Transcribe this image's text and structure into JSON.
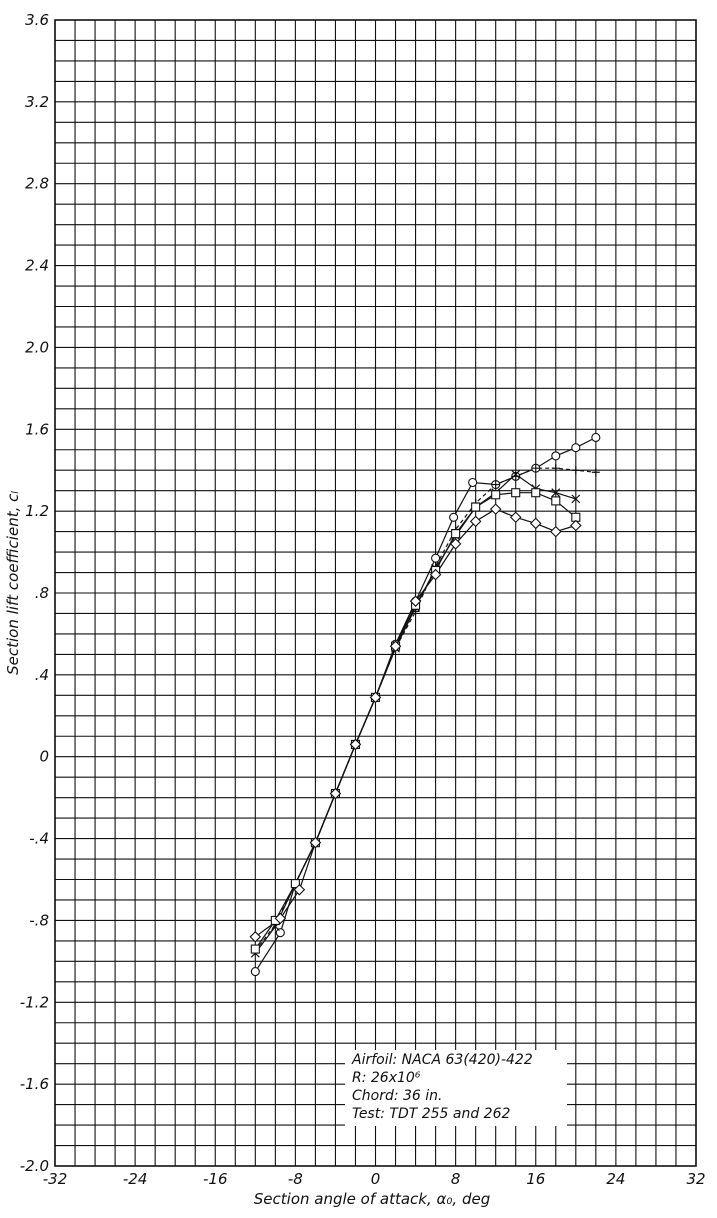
{
  "chart_data": {
    "type": "line",
    "xlabel": "Section angle of attack, α₀, deg",
    "ylabel": "Section lift coefficient, cₗ",
    "xlim": [
      -32,
      32
    ],
    "ylim": [
      -2.0,
      3.6
    ],
    "x_major_step": 8,
    "y_major_step": 0.4,
    "x_minor_step": 2,
    "y_minor_step": 0.1,
    "grid": true,
    "x_ticks": [
      {
        "value": -32,
        "label": "-32"
      },
      {
        "value": -24,
        "label": "-24"
      },
      {
        "value": -16,
        "label": "-16"
      },
      {
        "value": -8,
        "label": "-8"
      },
      {
        "value": 0,
        "label": "0"
      },
      {
        "value": 8,
        "label": "8"
      },
      {
        "value": 16,
        "label": "16"
      },
      {
        "value": 24,
        "label": "24"
      },
      {
        "value": 32,
        "label": "32"
      }
    ],
    "y_ticks": [
      {
        "value": 3.6,
        "label": "3.6"
      },
      {
        "value": 3.2,
        "label": "3.2"
      },
      {
        "value": 2.8,
        "label": "2.8"
      },
      {
        "value": 2.4,
        "label": "2.4"
      },
      {
        "value": 2.0,
        "label": "2.0"
      },
      {
        "value": 1.6,
        "label": "1.6"
      },
      {
        "value": 1.2,
        "label": "1.2"
      },
      {
        "value": 0.8,
        "label": ".8"
      },
      {
        "value": 0.4,
        "label": ".4"
      },
      {
        "value": 0,
        "label": "0"
      },
      {
        "value": -0.4,
        "label": "-.4"
      },
      {
        "value": -0.8,
        "label": "-.8"
      },
      {
        "value": -1.2,
        "label": "-1.2"
      },
      {
        "value": -1.6,
        "label": "-1.6"
      },
      {
        "value": -2.0,
        "label": "-2.0"
      }
    ],
    "annotation_lines": [
      "Airfoil: NACA 63(420)-422",
      "R: 26x10⁶",
      "Chord: 36 in.",
      "Test: TDT 255 and 262"
    ],
    "series": [
      {
        "marker": "circle",
        "x": [
          -12,
          -9.5,
          -8,
          -6,
          -4,
          -2,
          0,
          2,
          4,
          6,
          7.8,
          9.7,
          12,
          14,
          16,
          18,
          20,
          22
        ],
        "y": [
          -1.05,
          -0.86,
          -0.62,
          -0.42,
          -0.18,
          0.06,
          0.29,
          0.55,
          0.76,
          0.97,
          1.17,
          1.34,
          1.33,
          1.37,
          1.41,
          1.47,
          1.51,
          1.56
        ]
      },
      {
        "marker": "plus",
        "dashed": true,
        "x": [
          -12,
          -10,
          -8,
          -6,
          -4,
          -2,
          0,
          2,
          4,
          6,
          8,
          10,
          12,
          14,
          16,
          18,
          20,
          22
        ],
        "y": [
          -0.95,
          -0.82,
          -0.62,
          -0.42,
          -0.18,
          0.06,
          0.29,
          0.53,
          0.71,
          0.93,
          1.11,
          1.24,
          1.33,
          1.37,
          1.41,
          1.41,
          1.4,
          1.39
        ]
      },
      {
        "marker": "x",
        "x": [
          -12,
          -10,
          -8,
          -6,
          -4,
          -2,
          0,
          2,
          4,
          6,
          8,
          10,
          12,
          14,
          16,
          18,
          20
        ],
        "y": [
          -0.96,
          -0.83,
          -0.62,
          -0.42,
          -0.18,
          0.06,
          0.29,
          0.53,
          0.73,
          0.92,
          1.08,
          1.22,
          1.29,
          1.38,
          1.31,
          1.29,
          1.26
        ]
      },
      {
        "marker": "square",
        "x": [
          -12,
          -10,
          -8,
          -6,
          -4,
          -2,
          0,
          2,
          4,
          6,
          8,
          10,
          12,
          14,
          16,
          18,
          20
        ],
        "y": [
          -0.94,
          -0.8,
          -0.62,
          -0.42,
          -0.18,
          0.06,
          0.29,
          0.54,
          0.74,
          0.91,
          1.09,
          1.22,
          1.28,
          1.29,
          1.29,
          1.25,
          1.17
        ]
      },
      {
        "marker": "diamond",
        "x": [
          -12,
          -9.5,
          -7.6,
          -6,
          -4,
          -2,
          0,
          2,
          4,
          6,
          8,
          10,
          12,
          14,
          16,
          18,
          20
        ],
        "y": [
          -0.88,
          -0.79,
          -0.65,
          -0.42,
          -0.18,
          0.06,
          0.29,
          0.54,
          0.76,
          0.89,
          1.04,
          1.15,
          1.21,
          1.17,
          1.14,
          1.1,
          1.13
        ]
      }
    ]
  }
}
